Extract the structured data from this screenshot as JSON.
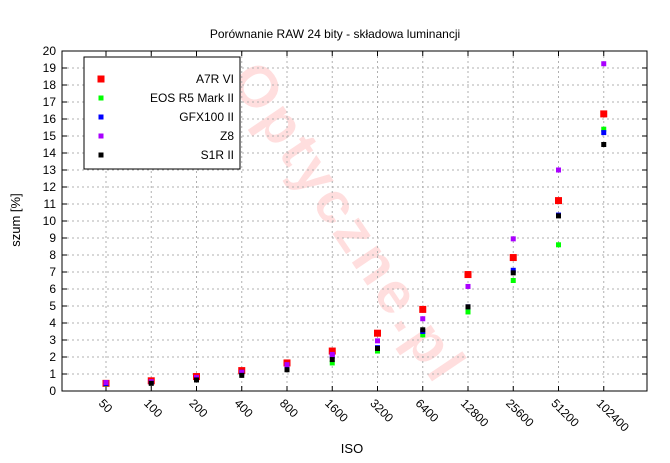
{
  "chart_data": {
    "type": "scatter",
    "title": "Porównanie RAW 24 bity - składowa luminancji",
    "xlabel": "ISO",
    "ylabel": "szum [%]",
    "categories": [
      "50",
      "100",
      "200",
      "400",
      "800",
      "1600",
      "3200",
      "6400",
      "12800",
      "25600",
      "51200",
      "102400"
    ],
    "ylim": [
      0,
      20
    ],
    "yticks": [
      "0",
      "1",
      "2",
      "3",
      "4",
      "5",
      "6",
      "7",
      "8",
      "9",
      "10",
      "11",
      "12",
      "13",
      "14",
      "15",
      "16",
      "17",
      "18",
      "19",
      "20"
    ],
    "grid": true,
    "legend_position": "top-left",
    "series": [
      {
        "name": "A7R VI",
        "color": "#ff0000",
        "values": [
          0.45,
          0.6,
          0.85,
          1.2,
          1.65,
          2.35,
          3.4,
          4.8,
          6.85,
          7.85,
          11.2,
          16.3
        ]
      },
      {
        "name": "EOS R5 Mark II",
        "color": "#00ff00",
        "values": [
          0.42,
          null,
          0.72,
          1.05,
          1.4,
          1.65,
          2.35,
          3.3,
          4.65,
          6.5,
          8.6,
          15.4
        ]
      },
      {
        "name": "GFX100 II",
        "color": "#0000ff",
        "values": [
          0.44,
          0.52,
          0.75,
          1.1,
          1.45,
          2.05,
          2.55,
          3.5,
          4.95,
          7.1,
          10.35,
          15.2
        ]
      },
      {
        "name": "Z8",
        "color": "#aa00ff",
        "values": [
          0.5,
          0.55,
          0.8,
          1.1,
          1.55,
          2.15,
          2.95,
          4.25,
          6.15,
          8.95,
          13.0,
          19.25
        ]
      },
      {
        "name": "S1R II",
        "color": "#000000",
        "values": [
          null,
          0.45,
          0.65,
          0.92,
          1.25,
          1.85,
          2.5,
          3.6,
          4.95,
          6.95,
          10.3,
          14.5
        ]
      }
    ]
  },
  "watermark": {
    "text": "Optyczne.pl",
    "color": "#ff0000"
  }
}
